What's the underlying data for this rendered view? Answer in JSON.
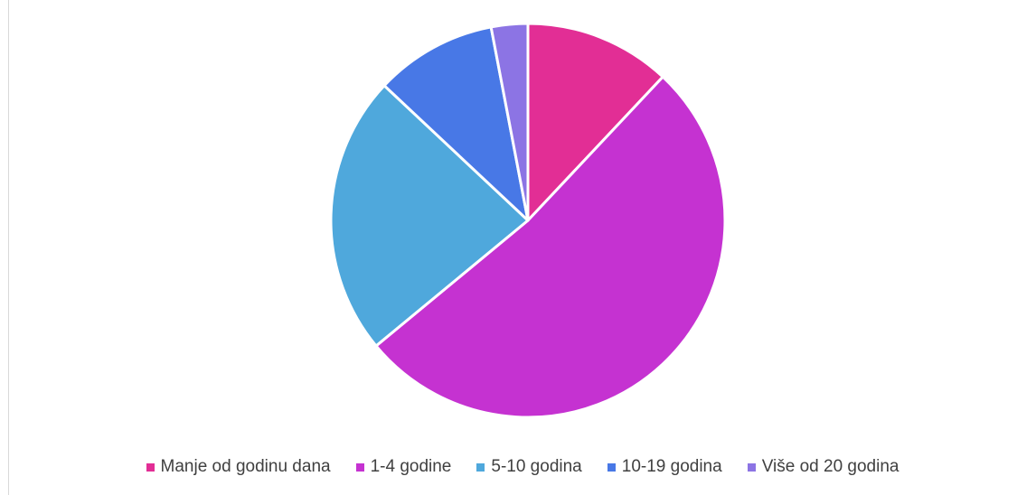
{
  "chart_data": {
    "type": "pie",
    "title": "",
    "categories": [
      "Manje od godinu dana",
      "1-4 godine",
      "5-10 godina",
      "10-19 godina",
      "Više od 20 godina"
    ],
    "values": [
      12,
      52,
      23,
      10,
      3
    ],
    "colors": [
      "#e22e95",
      "#c532d1",
      "#4fa8dc",
      "#4878e6",
      "#8c74e4"
    ],
    "legend_position": "bottom"
  }
}
